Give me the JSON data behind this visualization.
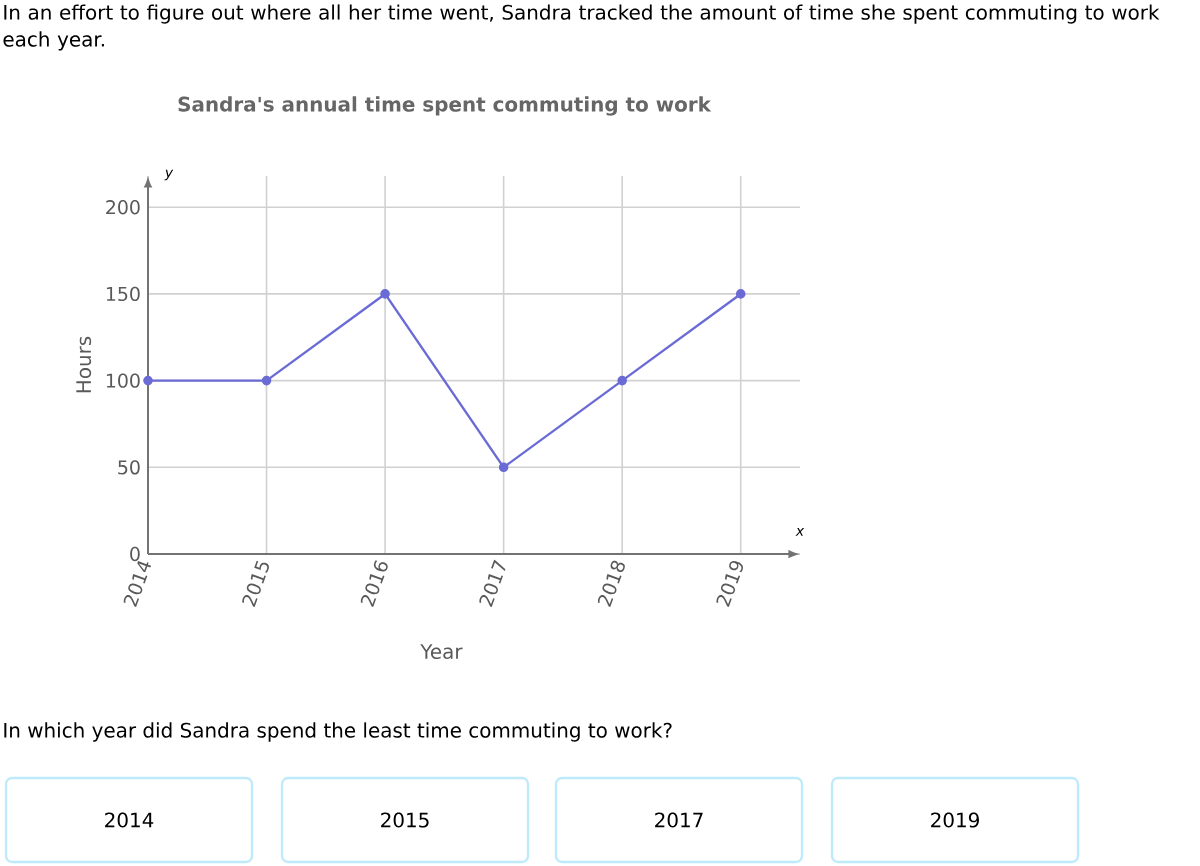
{
  "chart_data": {
    "type": "line",
    "title": "Sandra's annual time spent commuting to work",
    "xlabel": "Year",
    "ylabel": "Hours",
    "x": [
      2014,
      2015,
      2016,
      2017,
      2018,
      2019
    ],
    "series": [
      {
        "color": "#6b6bd6",
        "values": [
          100,
          100,
          150,
          50,
          100,
          150
        ]
      }
    ],
    "xlim": [
      2014,
      2019.5
    ],
    "xticks": [
      2014,
      2015,
      2016,
      2017,
      2018,
      2019
    ],
    "ylim": [
      0,
      218
    ],
    "yticks": [
      0,
      50,
      100,
      150,
      200
    ],
    "grid": true,
    "marker": "circle",
    "line_style": "solid",
    "annotations": [
      "In an effort to figure out where all her time went, Sandra tracked the amount of time she spent commuting to work each year.",
      "In which year did Sandra spend the least time commuting to work?",
      "2014",
      "2015",
      "2017",
      "2019",
      "y",
      "x"
    ]
  }
}
